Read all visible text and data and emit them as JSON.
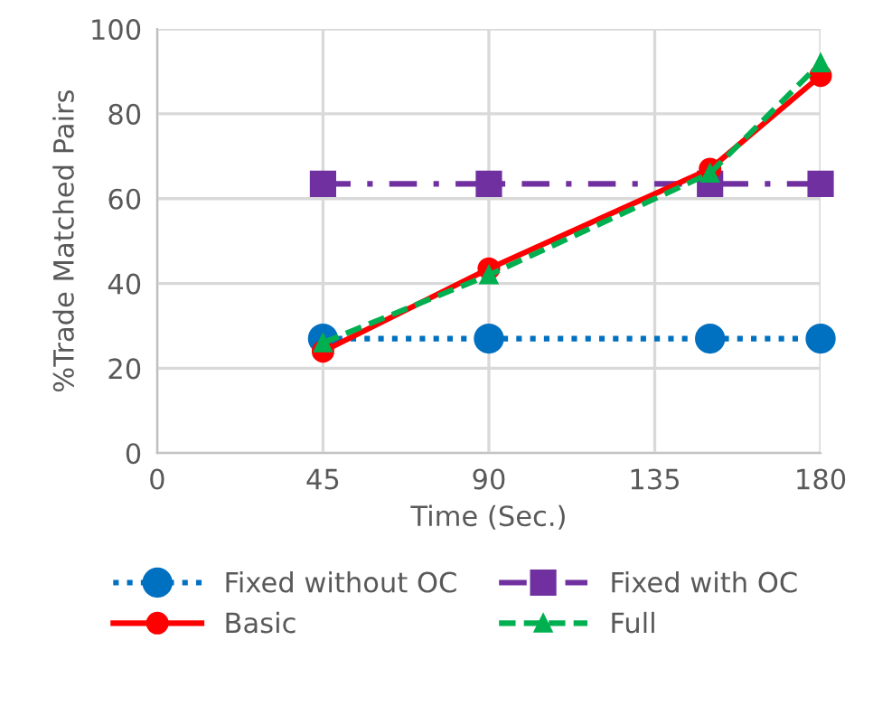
{
  "chart_data": {
    "type": "line",
    "xlabel": "Time (Sec.)",
    "ylabel": "%Trade Matched Pairs",
    "xlim": [
      0,
      180
    ],
    "xticks": [
      0,
      45,
      90,
      135,
      180
    ],
    "ylim": [
      0,
      100
    ],
    "yticks": [
      0,
      20,
      40,
      60,
      80,
      100
    ],
    "grid": true,
    "legend": "bottom",
    "series": [
      {
        "name": "Fixed without OC",
        "color": "#0070c0",
        "x": [
          45,
          90,
          150,
          180
        ],
        "values": [
          27,
          27,
          27,
          27
        ],
        "marker": "circle",
        "line_style": "dotted"
      },
      {
        "name": "Fixed with OC",
        "color": "#7030a0",
        "x": [
          45,
          90,
          150,
          180
        ],
        "values": [
          63.5,
          63.5,
          63.5,
          63.5
        ],
        "marker": "square",
        "line_style": "dashdot"
      },
      {
        "name": "Basic",
        "color": "#ff0000",
        "x": [
          45,
          90,
          150,
          180
        ],
        "values": [
          24,
          43.5,
          67,
          89
        ],
        "marker": "circle",
        "line_style": "solid"
      },
      {
        "name": "Full",
        "color": "#00b050",
        "x": [
          45,
          90,
          150,
          180
        ],
        "values": [
          26,
          42,
          66,
          92
        ],
        "marker": "triangle",
        "line_style": "dashed"
      }
    ]
  }
}
